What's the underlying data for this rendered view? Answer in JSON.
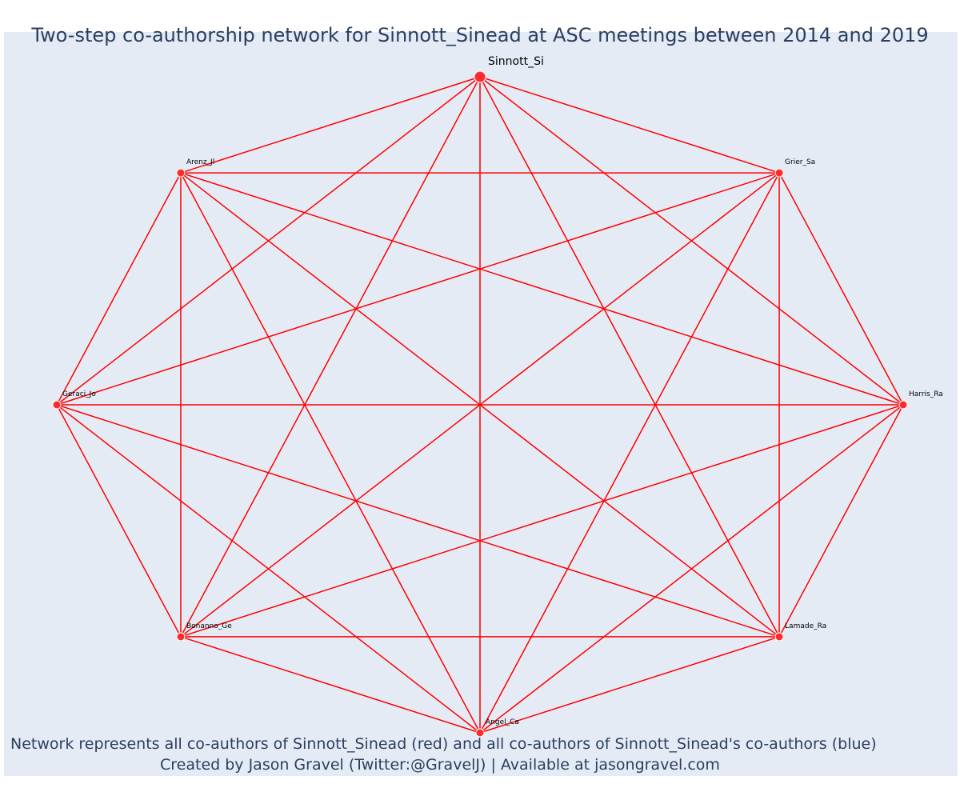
{
  "title": "Two-step co-authorship network for Sinnott_Sinead at ASC meetings between 2014 and 2019",
  "footer": {
    "line1": "Network represents all co-authors of Sinnott_Sinead (red) and all co-authors of Sinnott_Sinead's co-authors (blue)",
    "line2": "Created by Jason Gravel (Twitter:@GravelJ) | Available at jasongravel.com"
  },
  "colors": {
    "background": "#e5ebf5",
    "edge": "#ff0000",
    "node": "#ff2a2a",
    "node_outline": "#ffffff",
    "text": "#2a3f5f"
  },
  "network": {
    "central_node": "Sinnott_Si",
    "nodes": [
      {
        "id": "Sinnott_Si",
        "label": "Sinnott_Si",
        "group": "central",
        "color": "red"
      },
      {
        "id": "Grier_Sa",
        "label": "Grier_Sa",
        "group": "coauthor",
        "color": "red"
      },
      {
        "id": "Harris_Ra",
        "label": "Harris_Ra",
        "group": "coauthor",
        "color": "red"
      },
      {
        "id": "Lamade_Ra",
        "label": "Lamade_Ra",
        "group": "coauthor",
        "color": "red"
      },
      {
        "id": "Angel_Ca",
        "label": "Angel_Ca",
        "group": "coauthor",
        "color": "red"
      },
      {
        "id": "Bonanno_Ge",
        "label": "Bonanno_Ge",
        "group": "coauthor",
        "color": "red"
      },
      {
        "id": "Geraci_Jo",
        "label": "Geraci_Jo",
        "group": "coauthor",
        "color": "red"
      },
      {
        "id": "Arenz_Jl",
        "label": "Arenz_Jl",
        "group": "coauthor",
        "color": "red"
      }
    ],
    "edges": "complete"
  }
}
